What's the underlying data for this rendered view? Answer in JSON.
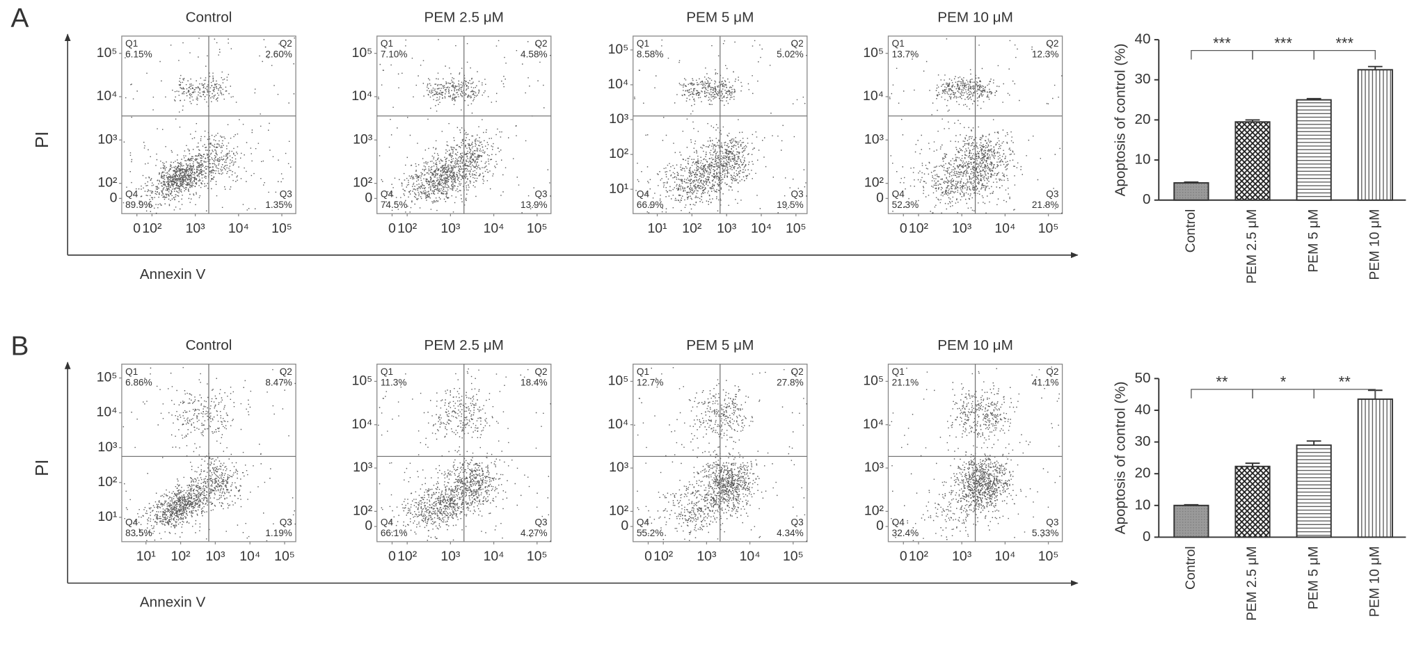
{
  "panels": [
    {
      "label": "A",
      "y_label": "PI",
      "x_label": "Annexin V"
    },
    {
      "label": "B",
      "y_label": "PI",
      "x_label": "Annexin V"
    }
  ],
  "chart_data": [
    {
      "type": "flow",
      "title": "Control",
      "quadrant_names": [
        "Q1",
        "Q2",
        "Q3",
        "Q4"
      ],
      "quadrant_labels": [
        "6.15%",
        "2.60%",
        "1.35%",
        "89.9%"
      ],
      "log_scale": true,
      "xlim": [
        20,
        210000
      ],
      "ylim": [
        20,
        250000
      ],
      "xticks": [
        0,
        {
          "value": 100,
          "label": "10²"
        },
        {
          "value": 1000,
          "label": "10³"
        },
        {
          "value": 10000,
          "label": "10⁴"
        },
        {
          "value": 100000,
          "label": "10⁵"
        }
      ],
      "yticks": [
        0,
        {
          "value": 100,
          "label": "10²"
        },
        {
          "value": 1000,
          "label": "10³"
        },
        {
          "value": 10000,
          "label": "10⁴"
        },
        {
          "value": 100000,
          "label": "10⁵"
        }
      ]
    },
    {
      "type": "flow",
      "title": "PEM 2.5 μM",
      "quadrant_names": [
        "Q1",
        "Q2",
        "Q3",
        "Q4"
      ],
      "quadrant_labels": [
        "7.10%",
        "4.58%",
        "13.9%",
        "74.5%"
      ],
      "log_scale": true,
      "xlim": [
        20,
        210000
      ],
      "ylim": [
        20,
        250000
      ],
      "xticks": [
        0,
        {
          "value": 100,
          "label": "10²"
        },
        {
          "value": 1000,
          "label": "10³"
        },
        {
          "value": 10000,
          "label": "10⁴"
        },
        {
          "value": 100000,
          "label": "10⁵"
        }
      ],
      "yticks": [
        0,
        {
          "value": 100,
          "label": "10²"
        },
        {
          "value": 1000,
          "label": "10³"
        },
        {
          "value": 10000,
          "label": "10⁴"
        },
        {
          "value": 100000,
          "label": "10⁵"
        }
      ]
    },
    {
      "type": "flow",
      "title": "PEM 5 μM",
      "quadrant_names": [
        "Q1",
        "Q2",
        "Q3",
        "Q4"
      ],
      "quadrant_labels": [
        "8.58%",
        "5.02%",
        "19.5%",
        "66.9%"
      ],
      "log_scale": true,
      "xlim": [
        2,
        210000
      ],
      "ylim": [
        2,
        250000
      ],
      "xticks": [
        {
          "value": 10,
          "label": "10¹"
        },
        {
          "value": 100,
          "label": "10²"
        },
        {
          "value": 1000,
          "label": "10³"
        },
        {
          "value": 10000,
          "label": "10⁴"
        },
        {
          "value": 100000,
          "label": "10⁵"
        }
      ],
      "yticks": [
        {
          "value": 10,
          "label": "10¹"
        },
        {
          "value": 100,
          "label": "10²"
        },
        {
          "value": 1000,
          "label": "10³"
        },
        {
          "value": 10000,
          "label": "10⁴"
        },
        {
          "value": 100000,
          "label": "10⁵"
        }
      ]
    },
    {
      "type": "flow",
      "title": "PEM 10 μM",
      "quadrant_names": [
        "Q1",
        "Q2",
        "Q3",
        "Q4"
      ],
      "quadrant_labels": [
        "13.7%",
        "12.3%",
        "21.8%",
        "52.3%"
      ],
      "log_scale": true,
      "xlim": [
        20,
        210000
      ],
      "ylim": [
        20,
        250000
      ],
      "xticks": [
        0,
        {
          "value": 100,
          "label": "10²"
        },
        {
          "value": 1000,
          "label": "10³"
        },
        {
          "value": 10000,
          "label": "10⁴"
        },
        {
          "value": 100000,
          "label": "10⁵"
        }
      ],
      "yticks": [
        0,
        {
          "value": 100,
          "label": "10²"
        },
        {
          "value": 1000,
          "label": "10³"
        },
        {
          "value": 10000,
          "label": "10⁴"
        },
        {
          "value": 100000,
          "label": "10⁵"
        }
      ]
    },
    {
      "type": "bar",
      "ylabel": "Apoptosis of control (%)",
      "categories": [
        "Control",
        "PEM 2.5 μM",
        "PEM 5 μM",
        "PEM 10 μM"
      ],
      "values": [
        4.3,
        19.5,
        25,
        32.5
      ],
      "errors": [
        0.2,
        0.5,
        0.3,
        0.8
      ],
      "ylim": [
        0,
        40
      ],
      "yticks": [
        0,
        10,
        20,
        30,
        40
      ],
      "patterns": [
        "gray",
        "crosshatch",
        "horizontal",
        "vertical"
      ],
      "significance": [
        "***",
        "***",
        "***"
      ]
    },
    {
      "type": "flow",
      "title": "Control",
      "quadrant_names": [
        "Q1",
        "Q2",
        "Q3",
        "Q4"
      ],
      "quadrant_labels": [
        "6.86%",
        "8.47%",
        "1.19%",
        "83.5%"
      ],
      "log_scale": true,
      "xlim": [
        2,
        210000
      ],
      "ylim": [
        2,
        250000
      ],
      "xticks": [
        {
          "value": 10,
          "label": "10¹"
        },
        {
          "value": 100,
          "label": "10²"
        },
        {
          "value": 1000,
          "label": "10³"
        },
        {
          "value": 10000,
          "label": "10⁴"
        },
        {
          "value": 100000,
          "label": "10⁵"
        }
      ],
      "yticks": [
        {
          "value": 10,
          "label": "10¹"
        },
        {
          "value": 100,
          "label": "10²"
        },
        {
          "value": 1000,
          "label": "10³"
        },
        {
          "value": 10000,
          "label": "10⁴"
        },
        {
          "value": 100000,
          "label": "10⁵"
        }
      ]
    },
    {
      "type": "flow",
      "title": "PEM 2.5 μM",
      "quadrant_names": [
        "Q1",
        "Q2",
        "Q3",
        "Q4"
      ],
      "quadrant_labels": [
        "11.3%",
        "18.4%",
        "4.27%",
        "66.1%"
      ],
      "log_scale": true,
      "xlim": [
        20,
        210000
      ],
      "ylim": [
        20,
        250000
      ],
      "xticks": [
        0,
        {
          "value": 100,
          "label": "10²"
        },
        {
          "value": 1000,
          "label": "10³"
        },
        {
          "value": 10000,
          "label": "10⁴"
        },
        {
          "value": 100000,
          "label": "10⁵"
        }
      ],
      "yticks": [
        0,
        {
          "value": 100,
          "label": "10²"
        },
        {
          "value": 1000,
          "label": "10³"
        },
        {
          "value": 10000,
          "label": "10⁴"
        },
        {
          "value": 100000,
          "label": "10⁵"
        }
      ]
    },
    {
      "type": "flow",
      "title": "PEM 5 μM",
      "quadrant_names": [
        "Q1",
        "Q2",
        "Q3",
        "Q4"
      ],
      "quadrant_labels": [
        "12.7%",
        "27.8%",
        "4.34%",
        "55.2%"
      ],
      "log_scale": true,
      "xlim": [
        20,
        210000
      ],
      "ylim": [
        20,
        250000
      ],
      "xticks": [
        0,
        {
          "value": 100,
          "label": "10²"
        },
        {
          "value": 1000,
          "label": "10³"
        },
        {
          "value": 10000,
          "label": "10⁴"
        },
        {
          "value": 100000,
          "label": "10⁵"
        }
      ],
      "yticks": [
        0,
        {
          "value": 100,
          "label": "10²"
        },
        {
          "value": 1000,
          "label": "10³"
        },
        {
          "value": 10000,
          "label": "10⁴"
        },
        {
          "value": 100000,
          "label": "10⁵"
        }
      ]
    },
    {
      "type": "flow",
      "title": "PEM 10 μM",
      "quadrant_names": [
        "Q1",
        "Q2",
        "Q3",
        "Q4"
      ],
      "quadrant_labels": [
        "21.1%",
        "41.1%",
        "5.33%",
        "32.4%"
      ],
      "log_scale": true,
      "xlim": [
        20,
        210000
      ],
      "ylim": [
        20,
        250000
      ],
      "xticks": [
        0,
        {
          "value": 100,
          "label": "10²"
        },
        {
          "value": 1000,
          "label": "10³"
        },
        {
          "value": 10000,
          "label": "10⁴"
        },
        {
          "value": 100000,
          "label": "10⁵"
        }
      ],
      "yticks": [
        0,
        {
          "value": 100,
          "label": "10²"
        },
        {
          "value": 1000,
          "label": "10³"
        },
        {
          "value": 10000,
          "label": "10⁴"
        },
        {
          "value": 100000,
          "label": "10⁵"
        }
      ]
    },
    {
      "type": "bar",
      "ylabel": "Apoptosis of control (%)",
      "categories": [
        "Control",
        "PEM 2.5 μM",
        "PEM 5 μM",
        "PEM 10 μM"
      ],
      "values": [
        10,
        22.3,
        29,
        43.5
      ],
      "errors": [
        0.2,
        1,
        1.3,
        2.8
      ],
      "ylim": [
        0,
        50
      ],
      "yticks": [
        0,
        10,
        20,
        30,
        40,
        50
      ],
      "patterns": [
        "gray",
        "crosshatch",
        "horizontal",
        "vertical"
      ],
      "significance": [
        "**",
        "*",
        "**"
      ]
    }
  ]
}
